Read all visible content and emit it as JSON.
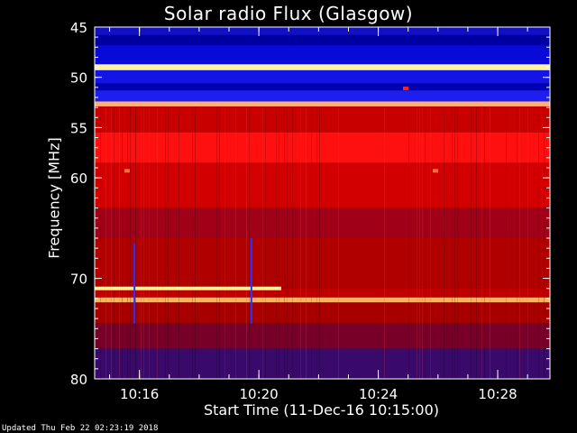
{
  "chart_data": {
    "type": "heatmap",
    "title": "Solar radio Flux (Glasgow)",
    "ylabel": "Frequency [MHz]",
    "xlabel": "Start Time (11-Dec-16 10:15:00)",
    "ylim": [
      45,
      80
    ],
    "y_ticks": [
      {
        "value": 45,
        "label": "45"
      },
      {
        "value": 50,
        "label": "50"
      },
      {
        "value": 55,
        "label": "55"
      },
      {
        "value": 60,
        "label": "60"
      },
      {
        "value": 70,
        "label": "70"
      },
      {
        "value": 80,
        "label": "80"
      }
    ],
    "xlim": [
      "10:14:30",
      "10:29:45"
    ],
    "x_ticks": [
      {
        "value": "10:16",
        "label": "10:16"
      },
      {
        "value": "10:20",
        "label": "10:20"
      },
      {
        "value": "10:24",
        "label": "10:24"
      },
      {
        "value": "10:28",
        "label": "10:28"
      }
    ],
    "bands": [
      {
        "from": 45,
        "to": 45.8,
        "color": "#1010c8"
      },
      {
        "from": 45.8,
        "to": 46.8,
        "color": "#0000a0"
      },
      {
        "from": 46.8,
        "to": 48.7,
        "color": "#0a0ad8"
      },
      {
        "from": 48.7,
        "to": 49.3,
        "color": "#fff2a0"
      },
      {
        "from": 49.3,
        "to": 50.6,
        "color": "#1414e6"
      },
      {
        "from": 50.6,
        "to": 51.3,
        "color": "#0000b4"
      },
      {
        "from": 51.3,
        "to": 52.4,
        "color": "#1e1ef0"
      },
      {
        "from": 52.4,
        "to": 52.9,
        "color": "#ffb070"
      },
      {
        "from": 52.9,
        "to": 55.5,
        "color": "#c80000"
      },
      {
        "from": 55.5,
        "to": 58.5,
        "color": "#ff1010"
      },
      {
        "from": 58.5,
        "to": 63.0,
        "color": "#d20000"
      },
      {
        "from": 63.0,
        "to": 66.0,
        "color": "#a00018"
      },
      {
        "from": 66.0,
        "to": 71.0,
        "color": "#b00000"
      },
      {
        "from": 71.0,
        "to": 71.9,
        "color": "#c00000"
      },
      {
        "from": 71.9,
        "to": 72.4,
        "color": "#ffb060"
      },
      {
        "from": 72.4,
        "to": 74.5,
        "color": "#a80000"
      },
      {
        "from": 74.5,
        "to": 77.0,
        "color": "#780028"
      },
      {
        "from": 77.0,
        "to": 80,
        "color": "#3a0a6a"
      }
    ],
    "features": [
      {
        "type": "hline",
        "freq": 71.0,
        "t_start": "10:14:30",
        "t_end": "10:20:45",
        "color": "#ffee90"
      },
      {
        "type": "vline",
        "time": "10:15:50",
        "f_start": 66.5,
        "f_end": 74.5,
        "color": "#3030ff"
      },
      {
        "type": "vline",
        "time": "10:19:45",
        "f_start": 66.0,
        "f_end": 74.5,
        "color": "#3030ff"
      },
      {
        "type": "dot",
        "time": "10:24:55",
        "freq": 51.1,
        "color": "#ff2020"
      },
      {
        "type": "dot",
        "time": "10:15:35",
        "freq": 59.3,
        "color": "#ff7040"
      },
      {
        "type": "dot",
        "time": "10:25:55",
        "freq": 59.3,
        "color": "#ff7040"
      }
    ],
    "grid": false
  },
  "footer": {
    "updated": "Updated Thu Feb 22 02:23:19 2018"
  }
}
